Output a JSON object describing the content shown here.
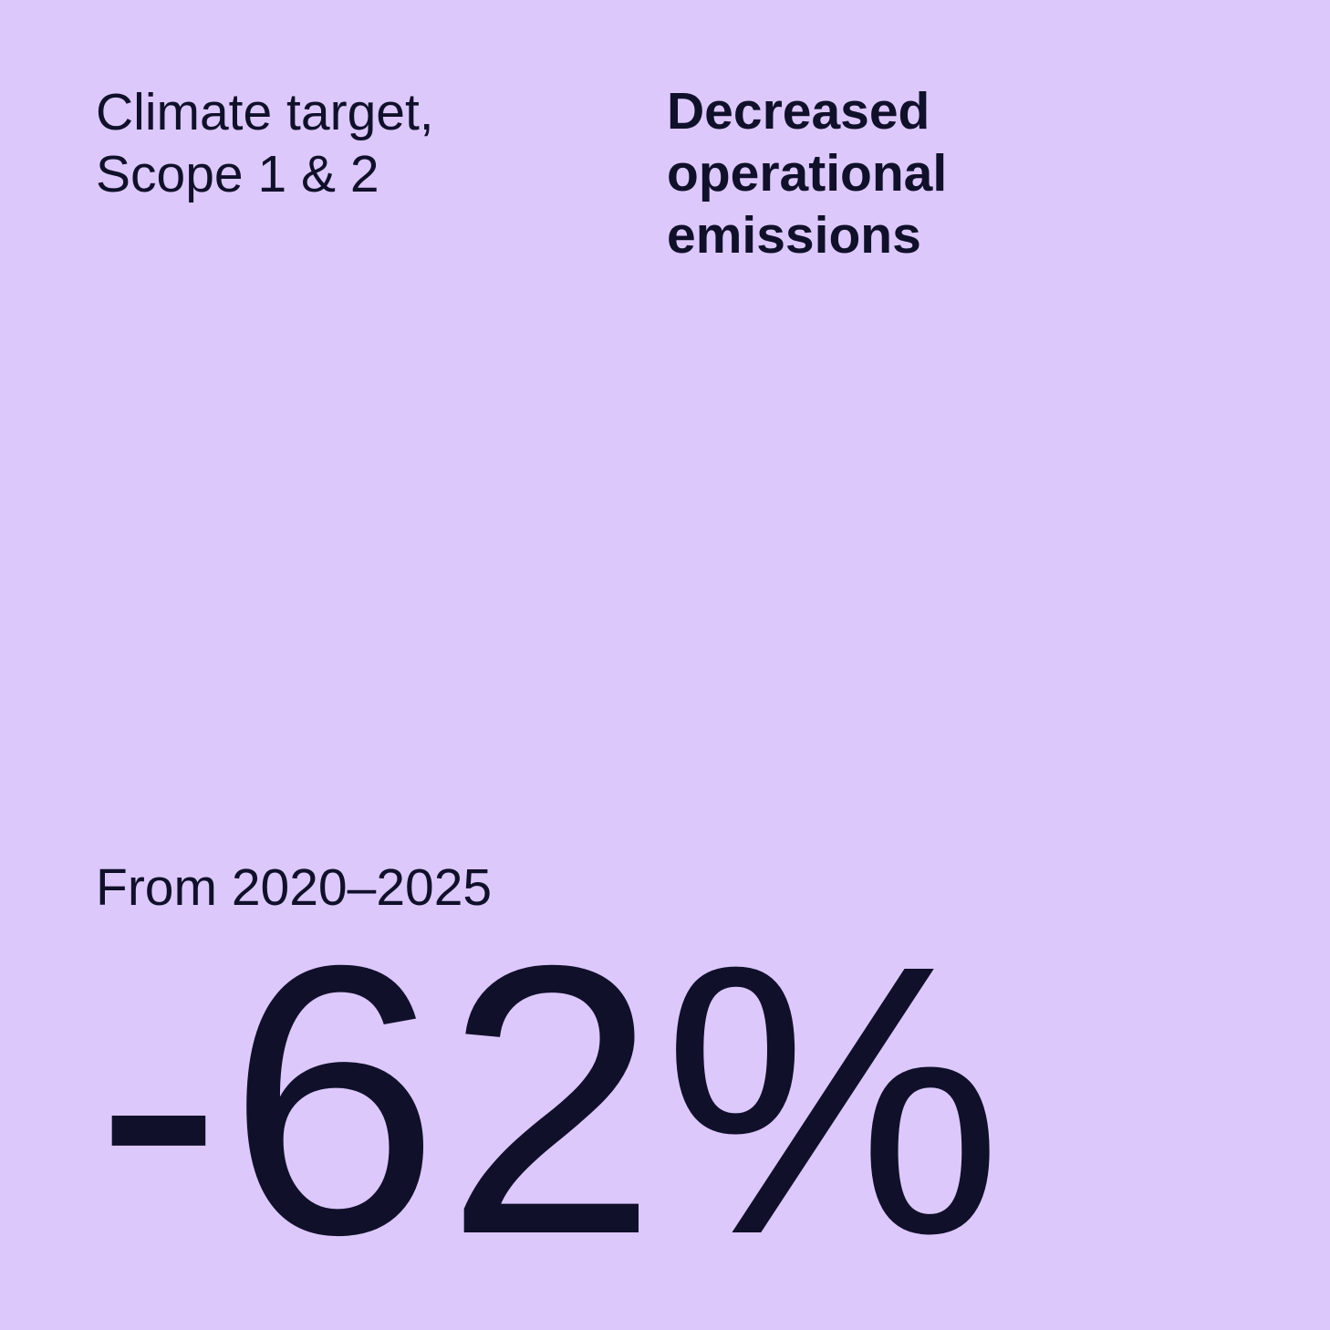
{
  "colors": {
    "background": "#DDC8FC",
    "text": "#10102A"
  },
  "header": {
    "label": "Climate target,\nScope 1 & 2",
    "title": "Decreased\noperational\nemissions"
  },
  "stat": {
    "caption": "From 2020–2025",
    "value": "-62%"
  }
}
